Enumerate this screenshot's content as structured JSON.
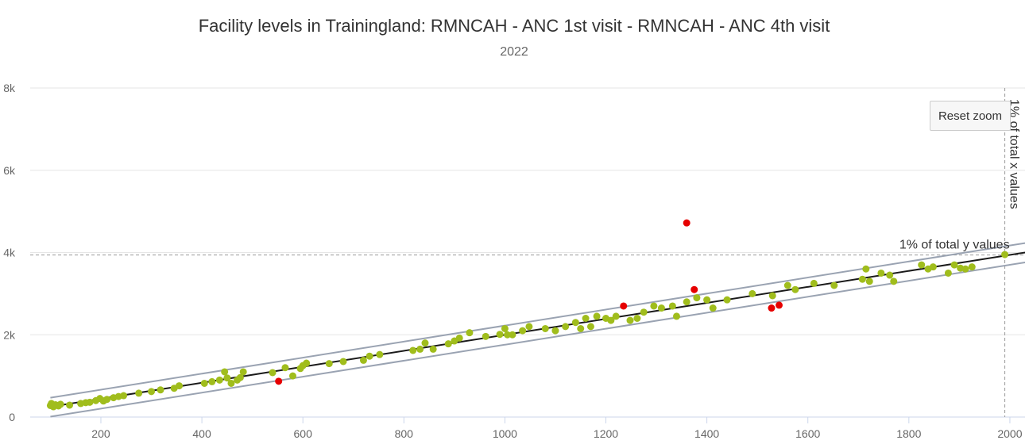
{
  "chart_data": {
    "type": "scatter",
    "title": "Facility levels in Trainingland: RMNCAH - ANC 1st visit - RMNCAH - ANC 4th visit",
    "subtitle": "2022",
    "xlim": [
      60,
      2030
    ],
    "ylim": [
      0,
      8000
    ],
    "x_ticks": [
      "200",
      "400",
      "600",
      "800",
      "1000",
      "1200",
      "1400",
      "1600",
      "1800",
      "2000"
    ],
    "x_tick_values": [
      200,
      400,
      600,
      800,
      1000,
      1200,
      1400,
      1600,
      1800,
      2000
    ],
    "y_ticks": [
      "0",
      "2k",
      "4k",
      "6k",
      "8k"
    ],
    "y_tick_values": [
      0,
      2000,
      4000,
      6000,
      8000
    ],
    "grid": "horizontal",
    "regression_line": {
      "x": [
        100,
        2030
      ],
      "y": [
        250,
        4000
      ]
    },
    "upper_band": {
      "x": [
        100,
        2030
      ],
      "y": [
        470,
        4230
      ]
    },
    "lower_band": {
      "x": [
        100,
        2030
      ],
      "y": [
        10,
        3760
      ]
    },
    "reference_lines": {
      "y_value": 3940,
      "y_label": "1% of total y values",
      "x_value": 1990,
      "x_label": "1% of total x values"
    },
    "reset_zoom_label": "Reset zoom",
    "colors": {
      "normal": "#a0bd1c",
      "outlier": "#e60000",
      "regression": "#1a1a1a",
      "band": "#9aa3b2",
      "reference": "#999999"
    },
    "series": [
      {
        "role": "normal",
        "points": [
          [
            100,
            280
          ],
          [
            102,
            330
          ],
          [
            106,
            250
          ],
          [
            110,
            300
          ],
          [
            116,
            270
          ],
          [
            120,
            310
          ],
          [
            138,
            290
          ],
          [
            160,
            330
          ],
          [
            170,
            350
          ],
          [
            178,
            360
          ],
          [
            190,
            400
          ],
          [
            198,
            450
          ],
          [
            205,
            390
          ],
          [
            212,
            430
          ],
          [
            225,
            470
          ],
          [
            235,
            500
          ],
          [
            245,
            520
          ],
          [
            275,
            580
          ],
          [
            300,
            620
          ],
          [
            318,
            660
          ],
          [
            345,
            700
          ],
          [
            355,
            760
          ],
          [
            405,
            820
          ],
          [
            420,
            860
          ],
          [
            435,
            900
          ],
          [
            445,
            1100
          ],
          [
            450,
            950
          ],
          [
            458,
            820
          ],
          [
            470,
            900
          ],
          [
            476,
            960
          ],
          [
            482,
            1100
          ],
          [
            540,
            1080
          ],
          [
            565,
            1200
          ],
          [
            580,
            1000
          ],
          [
            595,
            1180
          ],
          [
            600,
            1250
          ],
          [
            607,
            1310
          ],
          [
            652,
            1300
          ],
          [
            680,
            1350
          ],
          [
            720,
            1380
          ],
          [
            732,
            1480
          ],
          [
            752,
            1520
          ],
          [
            818,
            1620
          ],
          [
            832,
            1650
          ],
          [
            842,
            1800
          ],
          [
            858,
            1650
          ],
          [
            888,
            1780
          ],
          [
            900,
            1850
          ],
          [
            910,
            1920
          ],
          [
            930,
            2050
          ],
          [
            962,
            1960
          ],
          [
            990,
            2010
          ],
          [
            1000,
            2150
          ],
          [
            1005,
            2000
          ],
          [
            1015,
            2000
          ],
          [
            1035,
            2100
          ],
          [
            1048,
            2200
          ],
          [
            1080,
            2150
          ],
          [
            1100,
            2100
          ],
          [
            1120,
            2200
          ],
          [
            1140,
            2300
          ],
          [
            1150,
            2150
          ],
          [
            1160,
            2400
          ],
          [
            1170,
            2200
          ],
          [
            1182,
            2450
          ],
          [
            1200,
            2400
          ],
          [
            1210,
            2350
          ],
          [
            1220,
            2450
          ],
          [
            1248,
            2350
          ],
          [
            1262,
            2400
          ],
          [
            1275,
            2550
          ],
          [
            1295,
            2700
          ],
          [
            1310,
            2650
          ],
          [
            1332,
            2700
          ],
          [
            1340,
            2450
          ],
          [
            1360,
            2800
          ],
          [
            1380,
            2900
          ],
          [
            1400,
            2850
          ],
          [
            1412,
            2650
          ],
          [
            1440,
            2850
          ],
          [
            1490,
            3000
          ],
          [
            1530,
            2950
          ],
          [
            1560,
            3200
          ],
          [
            1575,
            3100
          ],
          [
            1612,
            3250
          ],
          [
            1652,
            3200
          ],
          [
            1708,
            3350
          ],
          [
            1715,
            3600
          ],
          [
            1722,
            3300
          ],
          [
            1745,
            3500
          ],
          [
            1762,
            3450
          ],
          [
            1770,
            3300
          ],
          [
            1825,
            3700
          ],
          [
            1838,
            3600
          ],
          [
            1848,
            3650
          ],
          [
            1878,
            3500
          ],
          [
            1890,
            3700
          ],
          [
            1902,
            3620
          ],
          [
            1912,
            3600
          ],
          [
            1925,
            3650
          ],
          [
            1990,
            3950
          ]
        ]
      },
      {
        "role": "outlier",
        "points": [
          [
            552,
            870
          ],
          [
            1235,
            2700
          ],
          [
            1360,
            4720
          ],
          [
            1375,
            3100
          ],
          [
            1528,
            2650
          ],
          [
            1543,
            2720
          ]
        ]
      }
    ]
  }
}
